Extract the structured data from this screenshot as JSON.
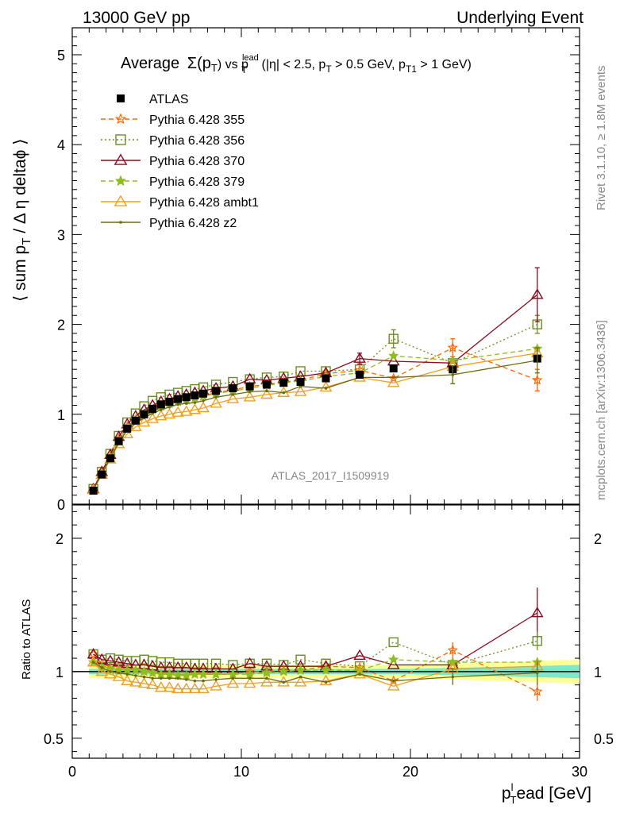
{
  "header": {
    "left": "13000 GeV pp",
    "right": "Underlying Event"
  },
  "side": {
    "rivet": "Rivet 3.1.10, ≥ 1.8M events",
    "mcplots": "mcplots.cern.ch [arXiv:1306.3436]"
  },
  "plot_title": {
    "t1": "Average",
    "t2": "Σ(p",
    "t3": "T",
    "t4": ") vs p",
    "t5": "lead",
    "t6": "T",
    "t7": " (|η| < 2.5, p",
    "t8": "T",
    "t9": " > 0.5 GeV, p",
    "t10": "T1",
    "t11": " > 1 GeV)"
  },
  "ylabel_main": {
    "a": "⟨ sum p",
    "b": "T",
    "c": " / Δ η deltaϕ ⟩"
  },
  "ylabel_ratio": "Ratio to ATLAS",
  "xlabel": {
    "a": "p",
    "b": "l",
    "c": "T",
    "d": "ead [GeV]"
  },
  "watermark": "ATLAS_2017_I1509919",
  "colors": {
    "data": "#000000",
    "s355": "#ff6600",
    "s356": "#6b8e23",
    "s370": "#8b0a1f",
    "s379": "#8fbc1f",
    "ambt1": "#f0a020",
    "z2": "#6b6b10",
    "band_outer": "#ffff99",
    "band_inner": "#80e8c8"
  },
  "chart_data": [
    {
      "type": "line",
      "panel": "main",
      "xlim": [
        0,
        30
      ],
      "ylim": [
        0,
        5.3
      ],
      "xticks": [
        "0",
        "10",
        "20",
        "30"
      ],
      "yticks": [
        "0",
        "1",
        "2",
        "3",
        "4",
        "5"
      ],
      "x": [
        1.25,
        1.75,
        2.25,
        2.75,
        3.25,
        3.75,
        4.25,
        4.75,
        5.25,
        5.75,
        6.25,
        6.75,
        7.25,
        7.75,
        8.5,
        9.5,
        10.5,
        11.5,
        12.5,
        13.5,
        15,
        17,
        19,
        22.5,
        27.5
      ],
      "series": [
        {
          "name": "ATLAS",
          "key": "data",
          "style": "data",
          "values": [
            0.15,
            0.33,
            0.51,
            0.7,
            0.84,
            0.93,
            1.0,
            1.06,
            1.11,
            1.14,
            1.17,
            1.19,
            1.21,
            1.23,
            1.26,
            1.29,
            1.31,
            1.33,
            1.35,
            1.36,
            1.4,
            1.44,
            1.51,
            1.5,
            1.62
          ]
        },
        {
          "name": "Pythia 6.428 355",
          "key": "s355",
          "style": "star-dash",
          "values": [
            0.17,
            0.35,
            0.53,
            0.73,
            0.86,
            0.94,
            1.0,
            1.05,
            1.09,
            1.12,
            1.14,
            1.16,
            1.18,
            1.21,
            1.24,
            1.27,
            1.31,
            1.33,
            1.36,
            1.38,
            1.45,
            1.49,
            1.4,
            1.74,
            1.38
          ]
        },
        {
          "name": "Pythia 6.428 356",
          "key": "s356",
          "style": "square-dot",
          "values": [
            0.17,
            0.36,
            0.56,
            0.76,
            0.91,
            1.01,
            1.09,
            1.15,
            1.19,
            1.22,
            1.24,
            1.26,
            1.28,
            1.3,
            1.33,
            1.36,
            1.39,
            1.41,
            1.42,
            1.48,
            1.48,
            1.5,
            1.84,
            1.57,
            2.0
          ]
        },
        {
          "name": "Pythia 6.428 370",
          "key": "s370",
          "style": "triangle-solid",
          "values": [
            0.17,
            0.36,
            0.55,
            0.75,
            0.89,
            0.98,
            1.05,
            1.1,
            1.14,
            1.17,
            1.2,
            1.22,
            1.24,
            1.26,
            1.29,
            1.31,
            1.39,
            1.38,
            1.4,
            1.42,
            1.46,
            1.62,
            1.59,
            1.57,
            2.33
          ]
        },
        {
          "name": "Pythia 6.428 379",
          "key": "s379",
          "style": "star-dash",
          "values": [
            0.16,
            0.34,
            0.52,
            0.71,
            0.85,
            0.94,
            1.0,
            1.05,
            1.09,
            1.12,
            1.14,
            1.16,
            1.18,
            1.2,
            1.23,
            1.26,
            1.29,
            1.32,
            1.35,
            1.37,
            1.42,
            1.46,
            1.65,
            1.6,
            1.73
          ]
        },
        {
          "name": "Pythia 6.428 ambt1",
          "key": "ambt1",
          "style": "triangle-solid",
          "values": [
            0.16,
            0.33,
            0.5,
            0.67,
            0.78,
            0.86,
            0.91,
            0.95,
            0.98,
            1.0,
            1.02,
            1.03,
            1.05,
            1.07,
            1.12,
            1.17,
            1.19,
            1.22,
            1.24,
            1.25,
            1.3,
            1.41,
            1.35,
            1.53,
            1.68
          ]
        },
        {
          "name": "Pythia 6.428 z2",
          "key": "z2",
          "style": "dot-solid",
          "values": [
            0.16,
            0.34,
            0.51,
            0.69,
            0.82,
            0.9,
            0.96,
            1.01,
            1.05,
            1.08,
            1.11,
            1.12,
            1.13,
            1.15,
            1.19,
            1.22,
            1.25,
            1.26,
            1.24,
            1.31,
            1.29,
            1.41,
            1.41,
            1.44,
            1.6
          ]
        }
      ],
      "errors": {
        "s356": [
          [
            27.5,
            0.1
          ],
          [
            19,
            0.1
          ]
        ],
        "s370": [
          [
            27.5,
            0.3
          ],
          [
            17,
            0.06
          ]
        ],
        "s355": [
          [
            27.5,
            0.12
          ],
          [
            22.5,
            0.1
          ]
        ],
        "z2": [
          [
            22.5,
            0.1
          ],
          [
            27.5,
            0.14
          ]
        ]
      }
    },
    {
      "type": "line",
      "panel": "ratio",
      "xlim": [
        0,
        30
      ],
      "ylim": [
        0.35,
        2.25
      ],
      "yticks": [
        "0.5",
        "1",
        "2"
      ],
      "ylabel": "Ratio to ATLAS",
      "x": [
        1.25,
        1.75,
        2.25,
        2.75,
        3.25,
        3.75,
        4.25,
        4.75,
        5.25,
        5.75,
        6.25,
        6.75,
        7.25,
        7.75,
        8.5,
        9.5,
        10.5,
        11.5,
        12.5,
        13.5,
        15,
        17,
        19,
        22.5,
        27.5
      ],
      "series": [
        {
          "key": "s355",
          "style": "star-dash",
          "values": [
            1.13,
            1.06,
            1.04,
            1.04,
            1.02,
            1.01,
            1.0,
            0.99,
            0.98,
            0.98,
            0.97,
            0.97,
            0.98,
            0.98,
            0.98,
            0.98,
            1.0,
            1.0,
            1.01,
            1.01,
            1.04,
            1.03,
            0.93,
            1.16,
            0.85
          ]
        },
        {
          "key": "s356",
          "style": "square-dot",
          "values": [
            1.13,
            1.09,
            1.1,
            1.09,
            1.08,
            1.08,
            1.09,
            1.08,
            1.07,
            1.07,
            1.06,
            1.06,
            1.06,
            1.06,
            1.06,
            1.05,
            1.06,
            1.06,
            1.05,
            1.09,
            1.06,
            1.04,
            1.22,
            1.05,
            1.23
          ]
        },
        {
          "key": "s370",
          "style": "triangle-solid",
          "values": [
            1.13,
            1.09,
            1.08,
            1.07,
            1.06,
            1.05,
            1.05,
            1.04,
            1.03,
            1.03,
            1.03,
            1.03,
            1.02,
            1.02,
            1.02,
            1.02,
            1.06,
            1.04,
            1.04,
            1.04,
            1.04,
            1.12,
            1.05,
            1.05,
            1.44
          ]
        },
        {
          "key": "s379",
          "style": "star-dash",
          "values": [
            1.07,
            1.03,
            1.02,
            1.01,
            1.01,
            1.01,
            1.0,
            0.99,
            0.98,
            0.98,
            0.97,
            0.97,
            0.98,
            0.98,
            0.98,
            0.98,
            0.98,
            0.99,
            1.0,
            1.01,
            1.01,
            1.01,
            1.09,
            1.07,
            1.07
          ]
        },
        {
          "key": "ambt1",
          "style": "triangle-solid",
          "values": [
            1.07,
            1.0,
            0.98,
            0.96,
            0.93,
            0.92,
            0.91,
            0.9,
            0.88,
            0.88,
            0.87,
            0.87,
            0.87,
            0.87,
            0.89,
            0.91,
            0.91,
            0.92,
            0.92,
            0.92,
            0.93,
            0.98,
            0.89,
            1.02,
            1.04
          ]
        },
        {
          "key": "z2",
          "style": "dot-solid",
          "values": [
            1.07,
            1.03,
            1.0,
            0.99,
            0.98,
            0.97,
            0.96,
            0.95,
            0.95,
            0.95,
            0.95,
            0.94,
            0.93,
            0.93,
            0.94,
            0.95,
            0.95,
            0.95,
            0.92,
            0.96,
            0.92,
            0.98,
            0.93,
            0.96,
            0.99
          ]
        }
      ]
    }
  ],
  "legend": [
    {
      "label": "ATLAS",
      "key": "data",
      "style": "data"
    },
    {
      "label": "Pythia 6.428 355",
      "key": "s355",
      "style": "star-dash"
    },
    {
      "label": "Pythia 6.428 356",
      "key": "s356",
      "style": "square-dot"
    },
    {
      "label": "Pythia 6.428 370",
      "key": "s370",
      "style": "triangle-solid"
    },
    {
      "label": "Pythia 6.428 379",
      "key": "s379",
      "style": "star-dash"
    },
    {
      "label": "Pythia 6.428 ambt1",
      "key": "ambt1",
      "style": "triangle-solid"
    },
    {
      "label": "Pythia 6.428 z2",
      "key": "z2",
      "style": "dot-solid"
    }
  ]
}
